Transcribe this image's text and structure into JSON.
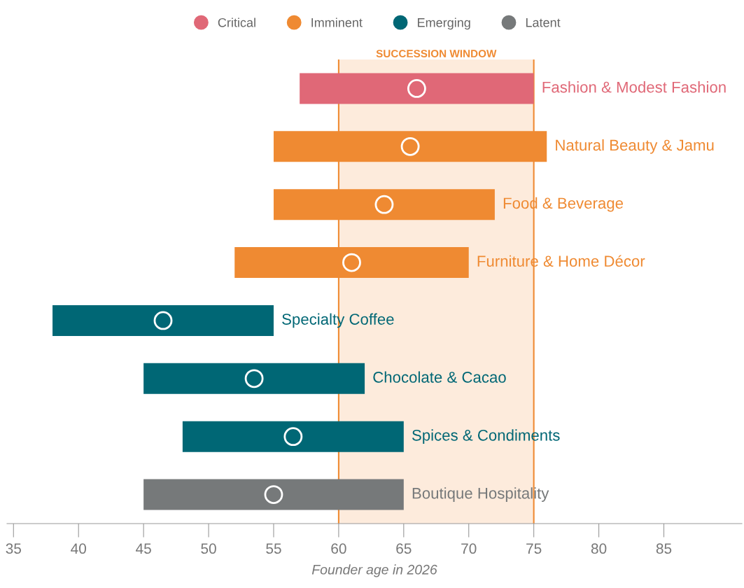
{
  "chart_data": {
    "type": "bar",
    "orientation": "horizontal",
    "xlabel": "Founder age in 2026",
    "categories": [
      "Fashion & Modest Fashion",
      "Natural Beauty & Jamu",
      "Food & Beverage",
      "Furniture & Home Décor",
      "Specialty Coffee",
      "Chocolate & Cacao",
      "Spices & Condiments",
      "Boutique Hospitality"
    ],
    "series": [
      {
        "name": "Critical",
        "color": "#e06877",
        "base": [
          57,
          null,
          null,
          null,
          null,
          null,
          null,
          null
        ],
        "values": [
          18,
          null,
          null,
          null,
          null,
          null,
          null,
          null
        ]
      },
      {
        "name": "Imminent",
        "color": "#ef8a32",
        "base": [
          null,
          55,
          55,
          52,
          null,
          null,
          null,
          null
        ],
        "values": [
          null,
          21,
          17,
          18,
          null,
          null,
          null,
          null
        ]
      },
      {
        "name": "Emerging",
        "color": "#006775",
        "base": [
          null,
          null,
          null,
          null,
          38,
          45,
          48,
          null
        ],
        "values": [
          null,
          null,
          null,
          null,
          17,
          17,
          17,
          null
        ]
      },
      {
        "name": "Latent",
        "color": "#76797a",
        "base": [
          null,
          null,
          null,
          null,
          null,
          null,
          null,
          45
        ],
        "values": [
          null,
          null,
          null,
          null,
          null,
          null,
          null,
          20
        ]
      },
      {
        "type": "scatter",
        "color": "#ffffff",
        "marker": "circle",
        "values": [
          66,
          65.5,
          63.5,
          61,
          46.5,
          53.5,
          56.5,
          55
        ]
      }
    ],
    "bands": [
      {
        "axis": "x",
        "from": 60,
        "to": 75,
        "label": "SUCCESSION WINDOW",
        "color": "#fdebdc"
      }
    ],
    "ref_lines": [
      {
        "axis": "x",
        "value": 60,
        "color": "#ef8a32"
      },
      {
        "axis": "x",
        "value": 75,
        "color": "#ef8a32"
      }
    ],
    "xlim": [
      34.5,
      91
    ],
    "xticks": [
      35,
      40,
      45,
      50,
      55,
      60,
      65,
      70,
      75,
      80,
      85
    ],
    "tick_labels": "x",
    "grid": false,
    "legend": "top"
  }
}
